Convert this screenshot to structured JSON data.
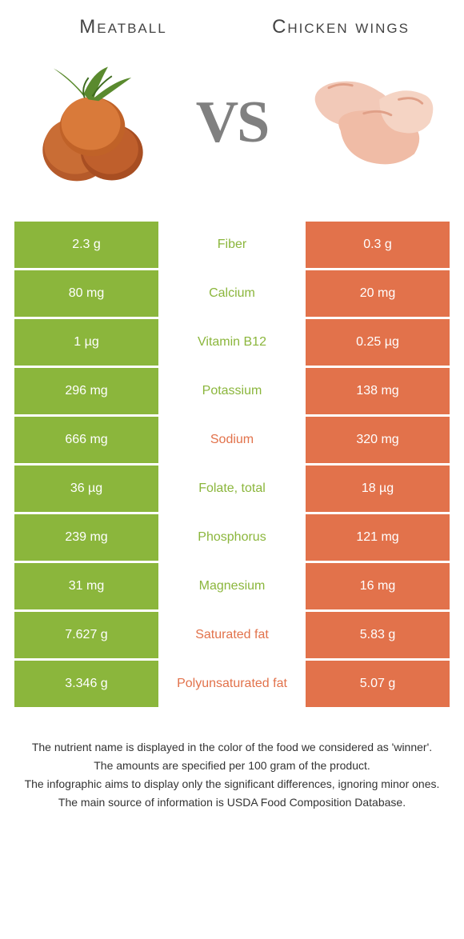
{
  "colors": {
    "left": "#8bb63c",
    "right": "#e2724b",
    "vs": "#808080",
    "title": "#444444",
    "footer": "#333333",
    "bg": "#ffffff"
  },
  "header": {
    "left_title": "Meatball",
    "right_title": "Chicken wings",
    "vs_text": "VS"
  },
  "rows": [
    {
      "left": "2.3 g",
      "label": "Fiber",
      "right": "0.3 g",
      "winner": "left"
    },
    {
      "left": "80 mg",
      "label": "Calcium",
      "right": "20 mg",
      "winner": "left"
    },
    {
      "left": "1 µg",
      "label": "Vitamin B12",
      "right": "0.25 µg",
      "winner": "left"
    },
    {
      "left": "296 mg",
      "label": "Potassium",
      "right": "138 mg",
      "winner": "left"
    },
    {
      "left": "666 mg",
      "label": "Sodium",
      "right": "320 mg",
      "winner": "right"
    },
    {
      "left": "36 µg",
      "label": "Folate, total",
      "right": "18 µg",
      "winner": "left"
    },
    {
      "left": "239 mg",
      "label": "Phosphorus",
      "right": "121 mg",
      "winner": "left"
    },
    {
      "left": "31 mg",
      "label": "Magnesium",
      "right": "16 mg",
      "winner": "left"
    },
    {
      "left": "7.627 g",
      "label": "Saturated fat",
      "right": "5.83 g",
      "winner": "right"
    },
    {
      "left": "3.346 g",
      "label": "Polyunsaturated fat",
      "right": "5.07 g",
      "winner": "right"
    }
  ],
  "footer": {
    "lines": [
      "The nutrient name is displayed in the color of the food we considered as 'winner'.",
      "The amounts are specified per 100 gram of the product.",
      "The infographic aims to display only the significant differences, ignoring minor ones.",
      "The main source of information is USDA Food Composition Database."
    ]
  }
}
